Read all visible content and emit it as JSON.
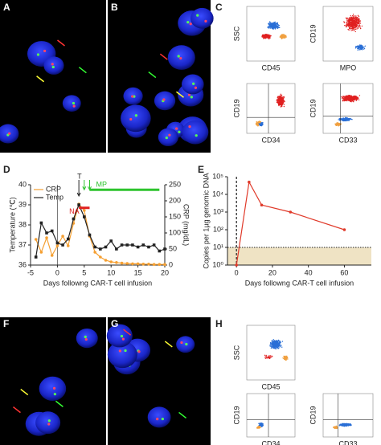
{
  "panels": {
    "labels": [
      "A",
      "B",
      "C",
      "D",
      "E",
      "F",
      "G",
      "H"
    ]
  },
  "flow_c": [
    {
      "y": "SSC",
      "x": "CD45"
    },
    {
      "y": "CD19",
      "x": "MPO"
    },
    {
      "y": "CD19",
      "x": "CD34"
    },
    {
      "y": "CD19",
      "x": "CD33"
    }
  ],
  "flow_h": [
    {
      "y": "SSC",
      "x": "CD45"
    },
    {
      "y": "CD19",
      "x": "CD34"
    },
    {
      "y": "CD19",
      "x": "CD33"
    }
  ],
  "chart_data": [
    {
      "type": "line",
      "xlabel": "Days followng CAR-T cell infusion",
      "ylabel": "Temperature (℃)",
      "y2label": "CRP (mg/dL)",
      "x": [
        -4,
        -3,
        -2,
        -1,
        0,
        1,
        2,
        3,
        4,
        5,
        6,
        7,
        8,
        9,
        10,
        11,
        12,
        13,
        14,
        15,
        16,
        17,
        18,
        19,
        20
      ],
      "series": [
        {
          "name": "CRP",
          "color": "#f5a033",
          "axis": "y2",
          "values": [
            80,
            40,
            85,
            30,
            60,
            90,
            60,
            130,
            190,
            170,
            90,
            40,
            25,
            15,
            10,
            8,
            6,
            5,
            4,
            4,
            3,
            3,
            2,
            2,
            2
          ]
        },
        {
          "name": "Temp",
          "color": "#222222",
          "values": [
            36.4,
            38.1,
            37.6,
            37.7,
            37.1,
            37.0,
            37.3,
            38.3,
            39.0,
            38.4,
            37.5,
            36.9,
            36.8,
            36.9,
            37.2,
            36.8,
            37.0,
            37.0,
            37.0,
            36.9,
            37.0,
            36.9,
            37.0,
            36.7,
            36.8
          ]
        }
      ],
      "xlim": [
        -5,
        20
      ],
      "xticks": [
        -5,
        0,
        5,
        10,
        15,
        20
      ],
      "ylim": [
        36,
        40
      ],
      "yticks": [
        36,
        37,
        38,
        39,
        40
      ],
      "y2lim": [
        0,
        250
      ],
      "y2ticks": [
        0,
        50,
        100,
        150,
        200,
        250
      ],
      "vline": 0,
      "annotations": [
        {
          "text": "T",
          "x": 4
        },
        {
          "text": "NA",
          "x": [
            4,
            6
          ],
          "y": 38.85,
          "color": "#e02020"
        },
        {
          "text": "MP",
          "x": [
            6,
            19
          ],
          "y": 39.75,
          "color": "#2ec42e"
        }
      ]
    },
    {
      "type": "line",
      "log": true,
      "xlabel": "Days followng CAR-T cell infusion",
      "ylabel": "Copies per 1µg genomic DNA",
      "x": [
        0,
        7,
        14,
        30,
        60
      ],
      "color": "#e03a2a",
      "values": [
        1,
        50000,
        2500,
        1000,
        100
      ],
      "xlim": [
        -5,
        75
      ],
      "xticks": [
        0,
        20,
        40,
        60
      ],
      "ylim": [
        1,
        100000
      ],
      "yticks": [
        {
          "value": 1,
          "label": "10⁰"
        },
        {
          "value": 10,
          "label": "10¹"
        },
        {
          "value": 100,
          "label": "10²"
        },
        {
          "value": 1000,
          "label": "10³"
        },
        {
          "value": 10000,
          "label": "10⁴"
        },
        {
          "value": 100000,
          "label": "10⁵"
        }
      ],
      "threshold": 10,
      "vline": 0
    }
  ]
}
